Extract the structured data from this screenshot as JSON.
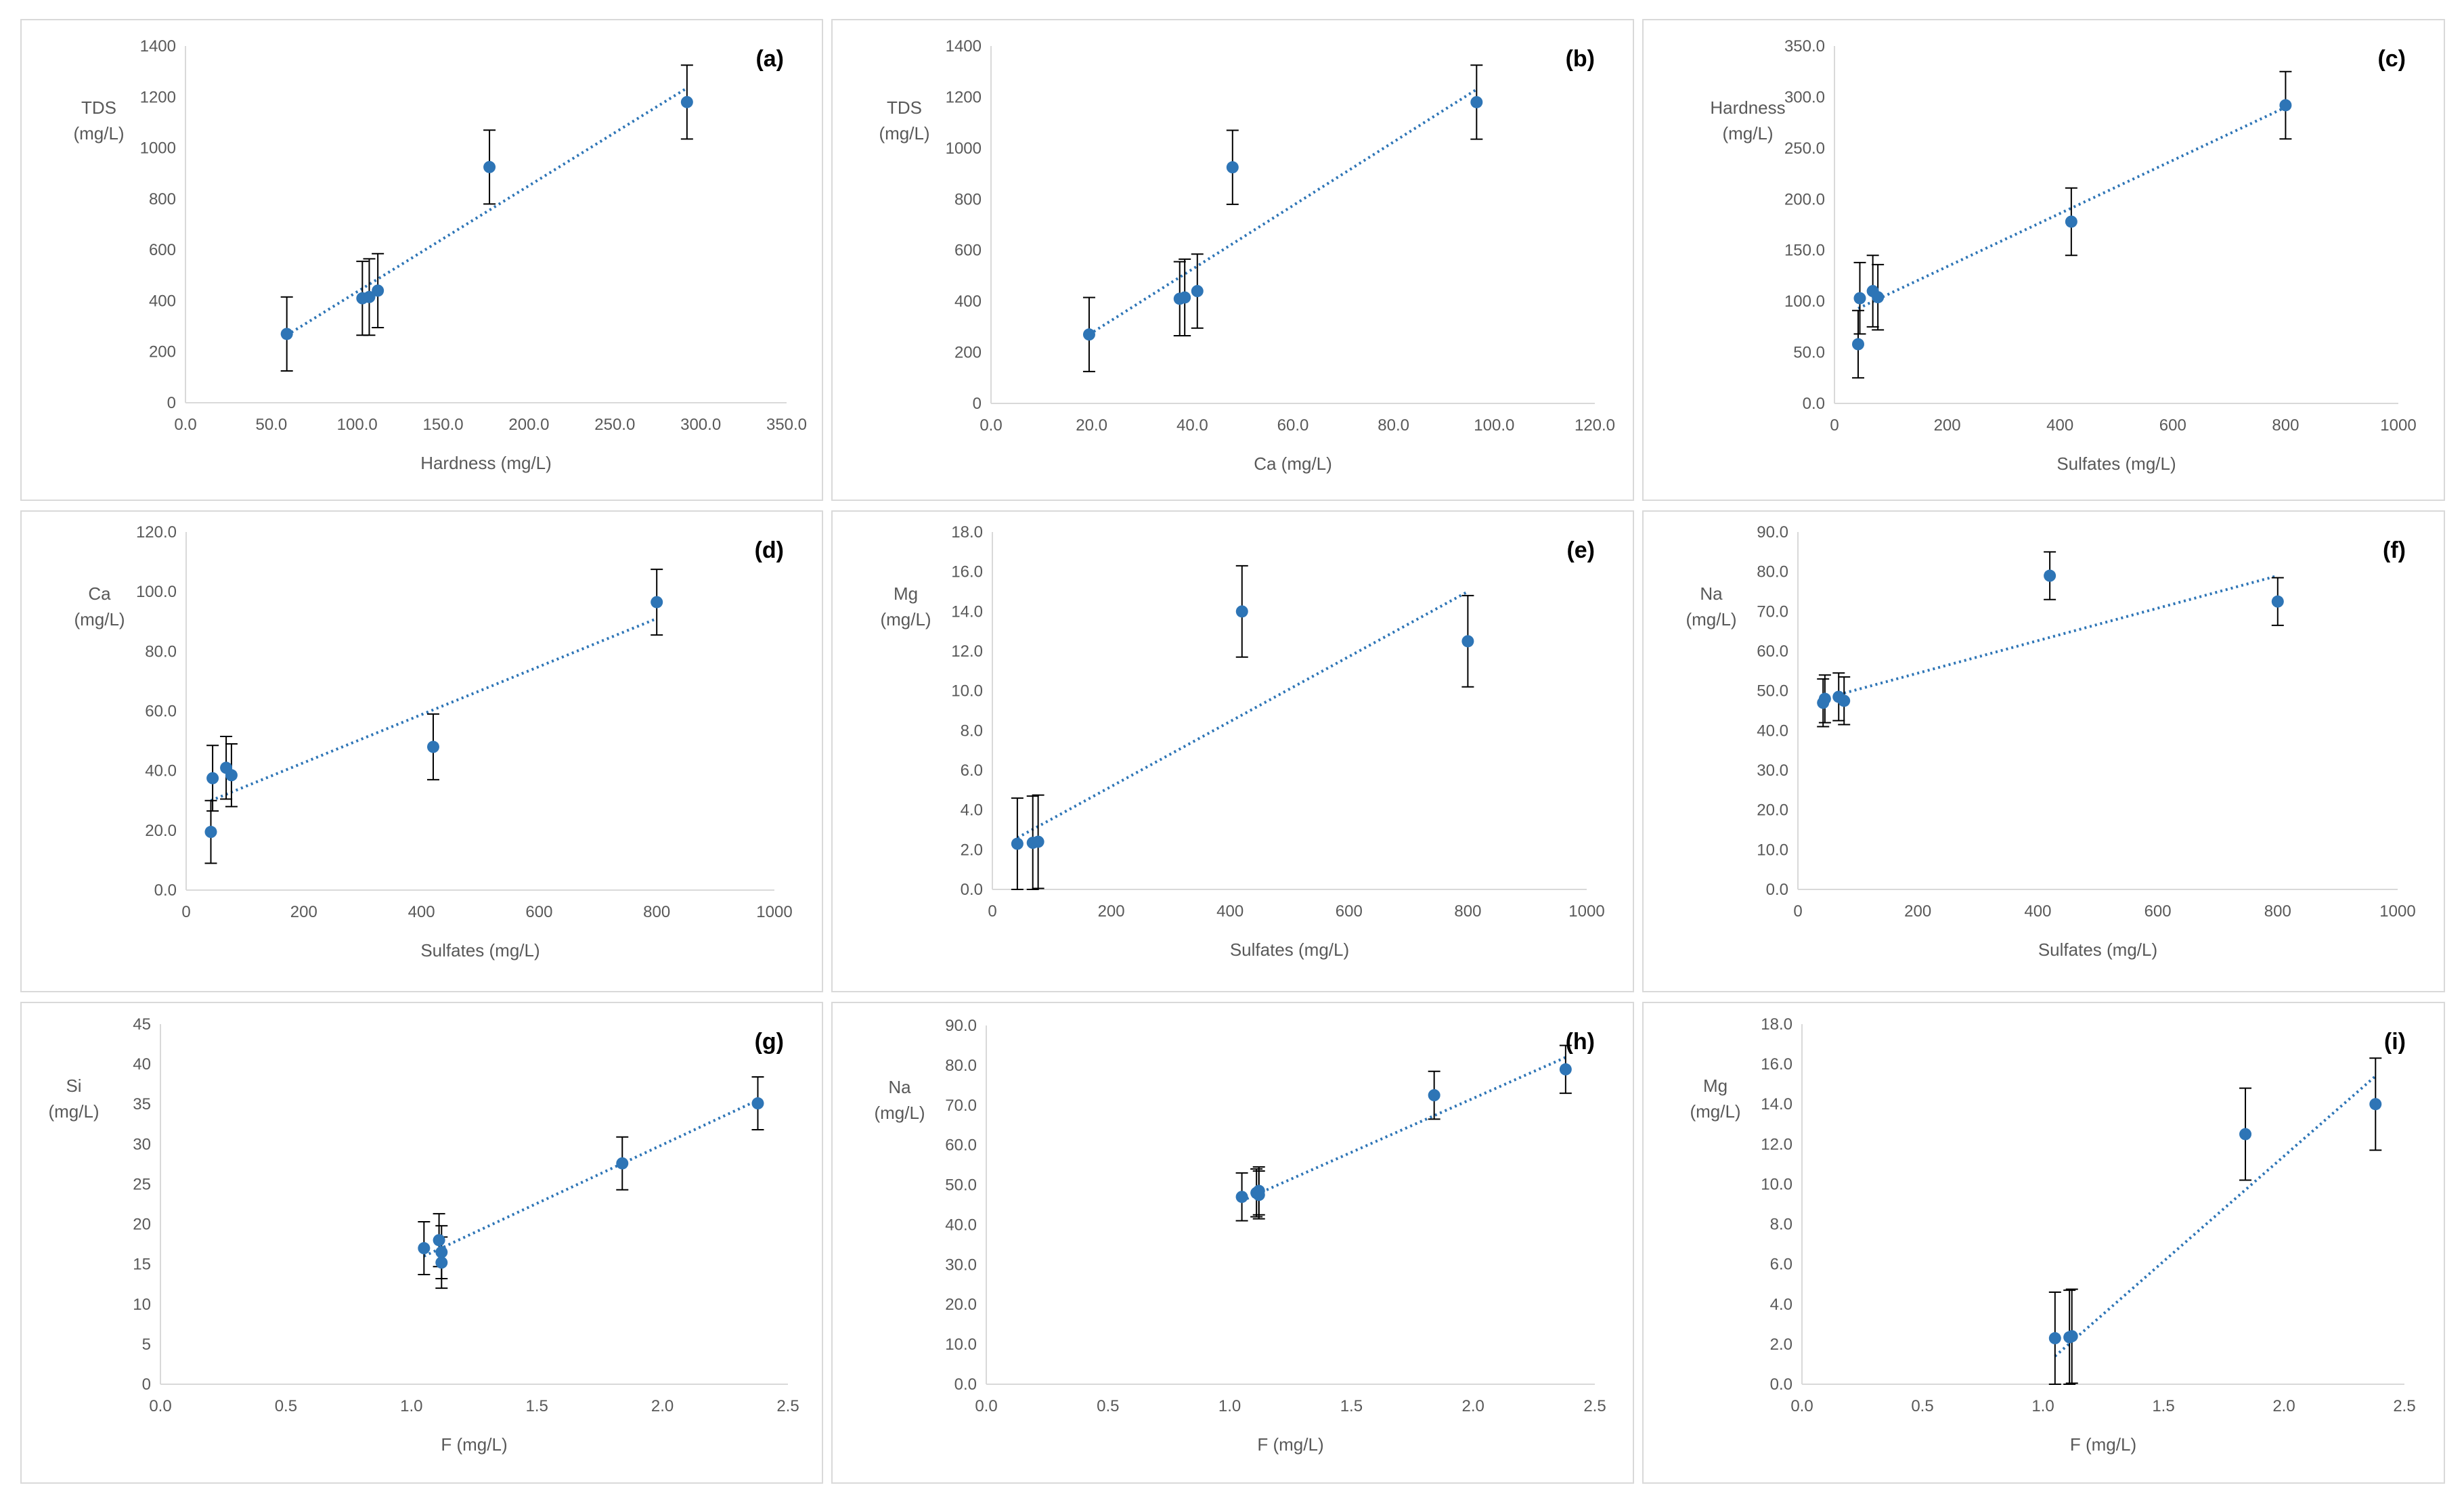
{
  "chart_data": [
    {
      "type": "scatter",
      "panel": "(a)",
      "xlabel": "Hardness (mg/L)",
      "ylabel": [
        "TDS",
        "(mg/L)"
      ],
      "xlim": [
        0,
        350
      ],
      "ylim": [
        0,
        1400
      ],
      "xticks": [
        "0.0",
        "50.0",
        "100.0",
        "150.0",
        "200.0",
        "250.0",
        "300.0",
        "350.0"
      ],
      "yticks": [
        "0",
        "200",
        "400",
        "600",
        "800",
        "1000",
        "1200",
        "1400"
      ],
      "points": [
        {
          "x": 59,
          "y": 270,
          "err": 145
        },
        {
          "x": 103,
          "y": 410,
          "err": 145
        },
        {
          "x": 107,
          "y": 415,
          "err": 150
        },
        {
          "x": 112,
          "y": 440,
          "err": 145
        },
        {
          "x": 177,
          "y": 925,
          "err": 145
        },
        {
          "x": 292,
          "y": 1180,
          "err": 145
        }
      ],
      "trend": [
        [
          59,
          265
        ],
        [
          292,
          1235
        ]
      ]
    },
    {
      "type": "scatter",
      "panel": "(b)",
      "xlabel": "Ca (mg/L)",
      "ylabel": [
        "TDS",
        "(mg/L)"
      ],
      "xlim": [
        0,
        120
      ],
      "ylim": [
        0,
        1400
      ],
      "xticks": [
        "0.0",
        "20.0",
        "40.0",
        "60.0",
        "80.0",
        "100.0",
        "120.0"
      ],
      "yticks": [
        "0",
        "200",
        "400",
        "600",
        "800",
        "1000",
        "1200",
        "1400"
      ],
      "points": [
        {
          "x": 19.5,
          "y": 270,
          "err": 145
        },
        {
          "x": 37.5,
          "y": 410,
          "err": 145
        },
        {
          "x": 38.5,
          "y": 415,
          "err": 150
        },
        {
          "x": 41,
          "y": 440,
          "err": 145
        },
        {
          "x": 48,
          "y": 925,
          "err": 145
        },
        {
          "x": 96.5,
          "y": 1180,
          "err": 145
        }
      ],
      "trend": [
        [
          19.5,
          270
        ],
        [
          96.5,
          1230
        ]
      ]
    },
    {
      "type": "scatter",
      "panel": "(c)",
      "xlabel": "Sulfates (mg/L)",
      "ylabel": [
        "Hardness",
        "(mg/L)"
      ],
      "xlim": [
        0,
        1000
      ],
      "ylim": [
        0,
        350
      ],
      "xticks": [
        "0",
        "200",
        "400",
        "600",
        "800",
        "1000"
      ],
      "yticks": [
        "0.0",
        "50.0",
        "100.0",
        "150.0",
        "200.0",
        "250.0",
        "300.0",
        "350.0"
      ],
      "points": [
        {
          "x": 42,
          "y": 58,
          "err": 33
        },
        {
          "x": 45,
          "y": 103,
          "err": 35
        },
        {
          "x": 68,
          "y": 110,
          "err": 35
        },
        {
          "x": 77,
          "y": 104,
          "err": 32
        },
        {
          "x": 420,
          "y": 178,
          "err": 33
        },
        {
          "x": 800,
          "y": 292,
          "err": 33
        }
      ],
      "trend": [
        [
          42,
          93
        ],
        [
          800,
          290
        ]
      ]
    },
    {
      "type": "scatter",
      "panel": "(d)",
      "xlabel": "Sulfates (mg/L)",
      "ylabel": [
        "Ca",
        "(mg/L)"
      ],
      "xlim": [
        0,
        1000
      ],
      "ylim": [
        0,
        120
      ],
      "xticks": [
        "0",
        "200",
        "400",
        "600",
        "800",
        "1000"
      ],
      "yticks": [
        "0.0",
        "20.0",
        "40.0",
        "60.0",
        "80.0",
        "100.0",
        "120.0"
      ],
      "points": [
        {
          "x": 42,
          "y": 19.5,
          "err": 10.5
        },
        {
          "x": 45,
          "y": 37.5,
          "err": 11
        },
        {
          "x": 68,
          "y": 41,
          "err": 10.5
        },
        {
          "x": 77,
          "y": 38.5,
          "err": 10.5
        },
        {
          "x": 420,
          "y": 48,
          "err": 11
        },
        {
          "x": 800,
          "y": 96.5,
          "err": 11
        }
      ],
      "trend": [
        [
          42,
          30
        ],
        [
          800,
          91
        ]
      ]
    },
    {
      "type": "scatter",
      "panel": "(e)",
      "xlabel": "Sulfates (mg/L)",
      "ylabel": [
        "Mg",
        "(mg/L)"
      ],
      "xlim": [
        0,
        1000
      ],
      "ylim": [
        0,
        18
      ],
      "xticks": [
        "0",
        "200",
        "400",
        "600",
        "800",
        "1000"
      ],
      "yticks": [
        "0.0",
        "2.0",
        "4.0",
        "6.0",
        "8.0",
        "10.0",
        "12.0",
        "14.0",
        "16.0",
        "18.0"
      ],
      "points": [
        {
          "x": 42,
          "y": 2.3,
          "err": 2.3
        },
        {
          "x": 68,
          "y": 2.35,
          "err": 2.35
        },
        {
          "x": 77,
          "y": 2.4,
          "err": 2.35
        },
        {
          "x": 420,
          "y": 14,
          "err": 2.3
        },
        {
          "x": 800,
          "y": 12.5,
          "err": 2.3
        }
      ],
      "trend": [
        [
          42,
          2.6
        ],
        [
          800,
          15
        ]
      ]
    },
    {
      "type": "scatter",
      "panel": "(f)",
      "xlabel": "Sulfates (mg/L)",
      "ylabel": [
        "Na",
        "(mg/L)"
      ],
      "xlim": [
        0,
        1000
      ],
      "ylim": [
        0,
        90
      ],
      "xticks": [
        "0",
        "200",
        "400",
        "600",
        "800",
        "1000"
      ],
      "yticks": [
        "0.0",
        "10.0",
        "20.0",
        "30.0",
        "40.0",
        "50.0",
        "60.0",
        "70.0",
        "80.0",
        "90.0"
      ],
      "points": [
        {
          "x": 42,
          "y": 47,
          "err": 6
        },
        {
          "x": 45,
          "y": 48,
          "err": 6
        },
        {
          "x": 68,
          "y": 48.5,
          "err": 6
        },
        {
          "x": 77,
          "y": 47.5,
          "err": 6
        },
        {
          "x": 420,
          "y": 79,
          "err": 6
        },
        {
          "x": 800,
          "y": 72.5,
          "err": 6
        }
      ],
      "trend": [
        [
          42,
          48
        ],
        [
          800,
          79
        ]
      ]
    },
    {
      "type": "scatter",
      "panel": "(g)",
      "xlabel": "F (mg/L)",
      "ylabel": [
        "Si",
        "(mg/L)"
      ],
      "xlim": [
        0,
        2.5
      ],
      "ylim": [
        0,
        45
      ],
      "xticks": [
        "0.0",
        "0.5",
        "1.0",
        "1.5",
        "2.0",
        "2.5"
      ],
      "yticks": [
        "0",
        "5",
        "10",
        "15",
        "20",
        "25",
        "30",
        "35",
        "40",
        "45"
      ],
      "points": [
        {
          "x": 1.05,
          "y": 17,
          "err": 3.3
        },
        {
          "x": 1.11,
          "y": 18,
          "err": 3.3
        },
        {
          "x": 1.12,
          "y": 16.5,
          "err": 3.3
        },
        {
          "x": 1.12,
          "y": 15.2,
          "err": 3.2
        },
        {
          "x": 1.84,
          "y": 27.6,
          "err": 3.3
        },
        {
          "x": 2.38,
          "y": 35.1,
          "err": 3.3
        }
      ],
      "trend": [
        [
          1.05,
          16
        ],
        [
          2.38,
          35.5
        ]
      ]
    },
    {
      "type": "scatter",
      "panel": "(h)",
      "xlabel": "F (mg/L)",
      "ylabel": [
        "Na",
        "(mg/L)"
      ],
      "xlim": [
        0,
        2.5
      ],
      "ylim": [
        0,
        90
      ],
      "xticks": [
        "0.0",
        "0.5",
        "1.0",
        "1.5",
        "2.0",
        "2.5"
      ],
      "yticks": [
        "0.0",
        "10.0",
        "20.0",
        "30.0",
        "40.0",
        "50.0",
        "60.0",
        "70.0",
        "80.0",
        "90.0"
      ],
      "points": [
        {
          "x": 1.05,
          "y": 47,
          "err": 6
        },
        {
          "x": 1.11,
          "y": 48,
          "err": 6
        },
        {
          "x": 1.12,
          "y": 48.5,
          "err": 6
        },
        {
          "x": 1.12,
          "y": 47.5,
          "err": 6
        },
        {
          "x": 1.84,
          "y": 72.5,
          "err": 6
        },
        {
          "x": 2.38,
          "y": 79,
          "err": 6
        }
      ],
      "trend": [
        [
          1.05,
          46
        ],
        [
          2.38,
          82
        ]
      ]
    },
    {
      "type": "scatter",
      "panel": "(i)",
      "xlabel": "F (mg/L)",
      "ylabel": [
        "Mg",
        "(mg/L)"
      ],
      "xlim": [
        0,
        2.5
      ],
      "ylim": [
        0,
        18
      ],
      "xticks": [
        "0.0",
        "0.5",
        "1.0",
        "1.5",
        "2.0",
        "2.5"
      ],
      "yticks": [
        "0.0",
        "2.0",
        "4.0",
        "6.0",
        "8.0",
        "10.0",
        "12.0",
        "14.0",
        "16.0",
        "18.0"
      ],
      "points": [
        {
          "x": 1.05,
          "y": 2.3,
          "err": 2.3
        },
        {
          "x": 1.11,
          "y": 2.35,
          "err": 2.35
        },
        {
          "x": 1.12,
          "y": 2.4,
          "err": 2.35
        },
        {
          "x": 1.84,
          "y": 12.5,
          "err": 2.3
        },
        {
          "x": 2.38,
          "y": 14,
          "err": 2.3
        }
      ],
      "trend": [
        [
          1.05,
          1.4
        ],
        [
          2.38,
          15.4
        ]
      ]
    }
  ],
  "colors": {
    "marker": "#2e75b6",
    "trendline": "#2e75b6",
    "errorbar": "#000000",
    "axis": "#d9d9d9",
    "text": "#595959"
  }
}
